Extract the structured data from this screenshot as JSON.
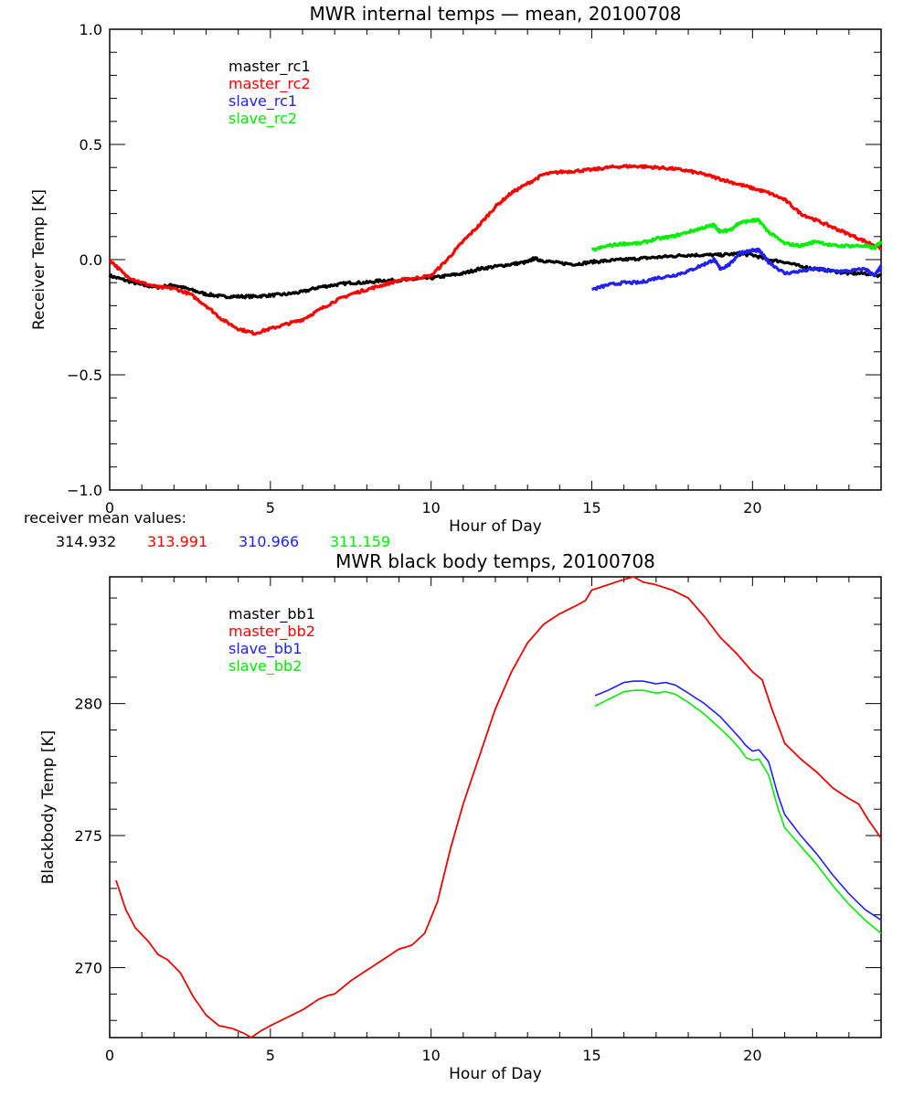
{
  "chart_data": [
    {
      "type": "line",
      "title": "MWR internal temps — mean, 20100708",
      "xlabel": "Hour of Day",
      "ylabel": "Receiver Temp [K]",
      "xlim": [
        0,
        24
      ],
      "ylim": [
        -1.0,
        1.0
      ],
      "xticks": [
        0,
        5,
        10,
        15,
        20
      ],
      "xtick_labels": [
        "0",
        "5",
        "10",
        "15",
        "20"
      ],
      "x_minor_step": 1,
      "yticks": [
        -1.0,
        -0.5,
        0.0,
        0.5,
        1.0
      ],
      "ytick_labels": [
        "−1.0",
        "−0.5",
        "0.0",
        "0.5",
        "1.0"
      ],
      "y_minor_step": 0.1,
      "grid": false,
      "legend_position": "top-left",
      "series": [
        {
          "name": "master_rc1",
          "color": "#000000",
          "noisy": true,
          "x": [
            0,
            0.5,
            1,
            1.5,
            2,
            2.5,
            3,
            3.5,
            4,
            4.5,
            5,
            5.5,
            6,
            6.5,
            7,
            7.5,
            8,
            8.5,
            9,
            9.5,
            10,
            10.5,
            11,
            11.5,
            12,
            12.5,
            13,
            13.2,
            13.5,
            14,
            14.5,
            15,
            15.5,
            16,
            16.5,
            17,
            17.5,
            18,
            18.5,
            19,
            19.5,
            20,
            20.5,
            21,
            21.5,
            22,
            22.5,
            23,
            23.5,
            24
          ],
          "y": [
            -0.07,
            -0.09,
            -0.11,
            -0.12,
            -0.11,
            -0.13,
            -0.15,
            -0.16,
            -0.16,
            -0.16,
            -0.155,
            -0.15,
            -0.14,
            -0.12,
            -0.11,
            -0.1,
            -0.1,
            -0.09,
            -0.09,
            -0.085,
            -0.08,
            -0.07,
            -0.06,
            -0.04,
            -0.03,
            -0.02,
            -0.01,
            0.005,
            -0.005,
            -0.015,
            -0.02,
            -0.01,
            -0.005,
            0.0,
            0.005,
            0.01,
            0.015,
            0.02,
            0.02,
            0.02,
            0.025,
            0.02,
            0.0,
            -0.01,
            -0.03,
            -0.04,
            -0.05,
            -0.06,
            -0.06,
            -0.07
          ]
        },
        {
          "name": "master_rc2",
          "color": "#ff0000",
          "noisy": true,
          "x": [
            0,
            0.5,
            1,
            1.5,
            2,
            2.5,
            3,
            3.5,
            4,
            4.5,
            5,
            5.5,
            6,
            6.5,
            7,
            7.5,
            8,
            8.5,
            9,
            9.5,
            10,
            10.5,
            11,
            11.5,
            12,
            12.5,
            13,
            13.5,
            14,
            14.5,
            15,
            15.5,
            16,
            16.5,
            17,
            17.5,
            18,
            18.5,
            19,
            19.5,
            20,
            20.5,
            21,
            21.5,
            22,
            22.5,
            23,
            23.5,
            24
          ],
          "y": [
            0.0,
            -0.07,
            -0.1,
            -0.12,
            -0.125,
            -0.15,
            -0.2,
            -0.26,
            -0.3,
            -0.32,
            -0.3,
            -0.28,
            -0.26,
            -0.22,
            -0.18,
            -0.15,
            -0.13,
            -0.11,
            -0.09,
            -0.08,
            -0.07,
            0.0,
            0.08,
            0.15,
            0.23,
            0.29,
            0.33,
            0.37,
            0.38,
            0.385,
            0.39,
            0.4,
            0.405,
            0.405,
            0.4,
            0.395,
            0.385,
            0.37,
            0.35,
            0.33,
            0.31,
            0.29,
            0.26,
            0.2,
            0.17,
            0.14,
            0.11,
            0.08,
            0.05
          ]
        },
        {
          "name": "slave_rc1",
          "color": "#2020ff",
          "noisy": true,
          "x": [
            15,
            15.5,
            16,
            16.5,
            17,
            17.5,
            18,
            18.5,
            18.8,
            19,
            19.3,
            19.6,
            20,
            20.2,
            20.5,
            21,
            21.5,
            22,
            22.5,
            23,
            23.5,
            23.8,
            24
          ],
          "y": [
            -0.13,
            -0.11,
            -0.1,
            -0.1,
            -0.08,
            -0.07,
            -0.05,
            -0.02,
            0.0,
            -0.04,
            -0.02,
            0.03,
            0.04,
            0.04,
            -0.01,
            -0.06,
            -0.05,
            -0.04,
            -0.05,
            -0.05,
            -0.04,
            -0.07,
            -0.03
          ]
        },
        {
          "name": "slave_rc2",
          "color": "#00ee00",
          "noisy": true,
          "x": [
            15,
            15.5,
            16,
            16.5,
            17,
            17.5,
            18,
            18.5,
            18.8,
            19,
            19.3,
            19.6,
            20,
            20.2,
            20.5,
            21,
            21.5,
            22,
            22.5,
            23,
            23.5,
            23.8,
            24
          ],
          "y": [
            0.04,
            0.06,
            0.07,
            0.07,
            0.09,
            0.1,
            0.12,
            0.14,
            0.15,
            0.12,
            0.13,
            0.16,
            0.17,
            0.17,
            0.12,
            0.07,
            0.06,
            0.08,
            0.06,
            0.06,
            0.06,
            0.05,
            0.08
          ]
        }
      ],
      "annotation": {
        "label": "receiver mean values:",
        "values": [
          {
            "series": "master_rc1",
            "value": "314.932",
            "color": "#000000"
          },
          {
            "series": "master_rc2",
            "value": "313.991",
            "color": "#ff0000"
          },
          {
            "series": "slave_rc1",
            "value": "310.966",
            "color": "#2020ff"
          },
          {
            "series": "slave_rc2",
            "value": "311.159",
            "color": "#00ee00"
          }
        ]
      }
    },
    {
      "type": "line",
      "title": "MWR black body temps, 20100708",
      "xlabel": "Hour of Day",
      "ylabel": "Blackbody Temp [K]",
      "xlim": [
        0,
        24
      ],
      "ylim": [
        267.35,
        284.8
      ],
      "xticks": [
        0,
        5,
        10,
        15,
        20
      ],
      "xtick_labels": [
        "0",
        "5",
        "10",
        "15",
        "20"
      ],
      "x_minor_step": 1,
      "yticks": [
        270,
        275,
        280
      ],
      "ytick_labels": [
        "270",
        "275",
        "280"
      ],
      "y_minor_step": 1,
      "grid": false,
      "legend_position": "top-left",
      "series": [
        {
          "name": "master_bb1",
          "color": "#000000",
          "x": [
            0.2,
            0.5,
            0.8,
            1.2,
            1.5,
            1.8,
            2.2,
            2.6,
            3.0,
            3.4,
            3.8,
            4.2,
            4.4,
            4.7,
            5.0,
            5.5,
            6.0,
            6.5,
            6.8,
            7.0,
            7.5,
            8.0,
            8.5,
            9.0,
            9.4,
            9.8,
            10.2,
            10.6,
            11.0,
            11.5,
            12.0,
            12.5,
            13.0,
            13.5,
            14.0,
            14.5,
            14.8,
            15.0,
            15.5,
            16.0,
            16.3,
            16.6,
            17.0,
            17.5,
            18.0,
            18.5,
            19.0,
            19.5,
            20.0,
            20.3,
            20.6,
            21.0,
            21.5,
            22.0,
            22.5,
            23.0,
            23.3,
            23.6,
            24.0
          ],
          "y": [
            273.3,
            272.2,
            271.5,
            271.0,
            270.5,
            270.3,
            269.8,
            268.9,
            268.2,
            267.8,
            267.7,
            267.5,
            267.35,
            267.6,
            267.8,
            268.1,
            268.4,
            268.8,
            268.95,
            269.0,
            269.5,
            269.9,
            270.3,
            270.7,
            270.85,
            271.3,
            272.5,
            274.5,
            276.2,
            278.0,
            279.8,
            281.2,
            282.3,
            283.0,
            283.4,
            283.7,
            283.9,
            284.3,
            284.5,
            284.7,
            284.8,
            284.6,
            284.5,
            284.3,
            284.0,
            283.3,
            282.5,
            281.9,
            281.2,
            280.9,
            279.8,
            278.5,
            277.9,
            277.4,
            276.8,
            276.4,
            276.2,
            275.6,
            274.9
          ]
        },
        {
          "name": "master_bb2",
          "color": "#ff0000",
          "x": [
            0.2,
            0.5,
            0.8,
            1.2,
            1.5,
            1.8,
            2.2,
            2.6,
            3.0,
            3.4,
            3.8,
            4.2,
            4.4,
            4.7,
            5.0,
            5.5,
            6.0,
            6.5,
            6.8,
            7.0,
            7.5,
            8.0,
            8.5,
            9.0,
            9.4,
            9.8,
            10.2,
            10.6,
            11.0,
            11.5,
            12.0,
            12.5,
            13.0,
            13.5,
            14.0,
            14.5,
            14.8,
            15.0,
            15.5,
            16.0,
            16.3,
            16.6,
            17.0,
            17.5,
            18.0,
            18.5,
            19.0,
            19.5,
            20.0,
            20.3,
            20.6,
            21.0,
            21.5,
            22.0,
            22.5,
            23.0,
            23.3,
            23.6,
            24.0
          ],
          "y": [
            273.3,
            272.2,
            271.5,
            271.0,
            270.5,
            270.3,
            269.8,
            268.9,
            268.2,
            267.8,
            267.7,
            267.5,
            267.35,
            267.6,
            267.8,
            268.1,
            268.4,
            268.8,
            268.95,
            269.0,
            269.5,
            269.9,
            270.3,
            270.7,
            270.85,
            271.3,
            272.5,
            274.5,
            276.2,
            278.0,
            279.8,
            281.2,
            282.3,
            283.0,
            283.4,
            283.7,
            283.9,
            284.3,
            284.5,
            284.7,
            284.8,
            284.6,
            284.5,
            284.3,
            284.0,
            283.3,
            282.5,
            281.9,
            281.2,
            280.9,
            279.8,
            278.5,
            277.9,
            277.4,
            276.8,
            276.4,
            276.2,
            275.6,
            274.9
          ]
        },
        {
          "name": "slave_bb1",
          "color": "#2020ff",
          "x": [
            15.1,
            15.5,
            16.0,
            16.3,
            16.6,
            17.0,
            17.3,
            17.6,
            18.0,
            18.5,
            19.0,
            19.3,
            19.6,
            19.8,
            20.0,
            20.2,
            20.5,
            20.8,
            21.0,
            21.5,
            22.0,
            22.5,
            23.0,
            23.5,
            24.0
          ],
          "y": [
            280.3,
            280.5,
            280.8,
            280.85,
            280.85,
            280.75,
            280.8,
            280.7,
            280.4,
            280.0,
            279.5,
            279.1,
            278.7,
            278.4,
            278.2,
            278.25,
            277.8,
            276.5,
            275.8,
            275.0,
            274.3,
            273.5,
            272.8,
            272.2,
            271.8
          ]
        },
        {
          "name": "slave_bb2",
          "color": "#00ee00",
          "x": [
            15.1,
            15.5,
            16.0,
            16.3,
            16.6,
            17.0,
            17.3,
            17.6,
            18.0,
            18.5,
            19.0,
            19.3,
            19.6,
            19.8,
            20.0,
            20.2,
            20.5,
            20.8,
            21.0,
            21.5,
            22.0,
            22.5,
            23.0,
            23.5,
            24.0
          ],
          "y": [
            279.9,
            280.15,
            280.45,
            280.5,
            280.5,
            280.4,
            280.45,
            280.35,
            280.05,
            279.6,
            279.05,
            278.7,
            278.3,
            277.95,
            277.85,
            277.9,
            277.3,
            276.0,
            275.3,
            274.6,
            273.9,
            273.1,
            272.4,
            271.8,
            271.3
          ]
        }
      ]
    }
  ]
}
